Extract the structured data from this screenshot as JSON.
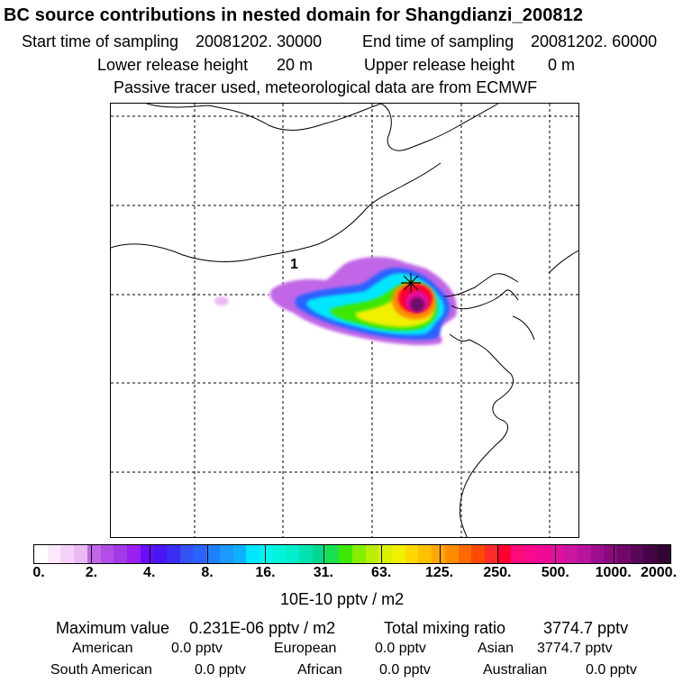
{
  "header": {
    "title": "BC  source contributions in nested domain for Shangdianzi_200812",
    "start_label": "Start time of sampling",
    "start_value": "20081202. 30000",
    "end_label": "End time of sampling",
    "end_value": "20081202. 60000",
    "lower_label": "Lower release height",
    "lower_value": "20 m",
    "upper_label": "Upper release height",
    "upper_value": "0 m",
    "note": "Passive tracer used, meteorological data are from ECMWF"
  },
  "map": {
    "annotation": "1",
    "receptor_marker": "star-marker"
  },
  "colorbar": {
    "tick_labels": [
      "0.",
      "2.",
      "4.",
      "8.",
      "16.",
      "31.",
      "63.",
      "125.",
      "250.",
      "500.",
      "1000.",
      "2000."
    ],
    "colors": [
      "#ffffff",
      "#fbe9fb",
      "#f5d2f7",
      "#eab8f2",
      "#c066e6",
      "#b24de6",
      "#a33ae8",
      "#9b1ff0",
      "#6a0dff",
      "#4a15f5",
      "#3a2cf0",
      "#3452f0",
      "#2a62ff",
      "#1e80ff",
      "#1a99ff",
      "#0eb1ff",
      "#00e6ff",
      "#00f5f0",
      "#00f5d8",
      "#00eecc",
      "#00e3b0",
      "#00d98e",
      "#18e050",
      "#3ce800",
      "#88ee00",
      "#b8f000",
      "#d8f200",
      "#f0f000",
      "#ffd800",
      "#ffc000",
      "#ffa600",
      "#ff8c00",
      "#ff6a00",
      "#ff4a00",
      "#ff2a2a",
      "#ff0030",
      "#ff0a7a",
      "#f80a8c",
      "#ee0a96",
      "#e0109e",
      "#cc15a0",
      "#b8149c",
      "#9c0e8e",
      "#8a0a80",
      "#6f0868",
      "#5a0658",
      "#460446",
      "#320432"
    ],
    "units": "10E-10 pptv / m2"
  },
  "stats": {
    "max_label": "Maximum value",
    "max_value": "0.231E-06 pptv / m2",
    "total_label": "Total mixing ratio",
    "total_value": "3774.7 pptv",
    "regions": [
      {
        "name": "American",
        "value": "0.0 pptv"
      },
      {
        "name": "European",
        "value": "0.0 pptv"
      },
      {
        "name": "Asian",
        "value": "3774.7 pptv"
      },
      {
        "name": "South American",
        "value": "0.0 pptv"
      },
      {
        "name": "African",
        "value": "0.0 pptv"
      },
      {
        "name": "Australian",
        "value": "0.0 pptv"
      }
    ]
  }
}
